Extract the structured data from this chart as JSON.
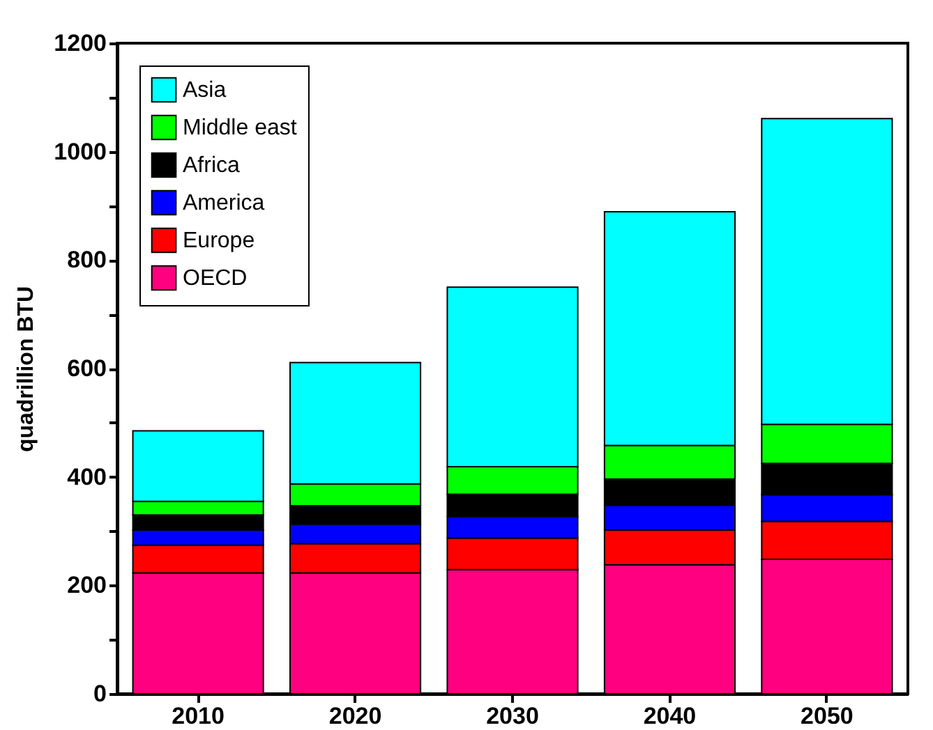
{
  "chart_data": {
    "type": "bar",
    "stacked": true,
    "ylabel": "quadrillion BTU",
    "categories": [
      "2010",
      "2020",
      "2030",
      "2040",
      "2050"
    ],
    "ylim": [
      0,
      1200
    ],
    "yticks": [
      0,
      {
        "value": 100,
        "label": null
      },
      200,
      {
        "value": 300,
        "label": null
      },
      400,
      {
        "value": 500,
        "label": null
      },
      600,
      {
        "value": 700,
        "label": null
      },
      800,
      {
        "value": 900,
        "label": null
      },
      1000,
      {
        "value": 1100,
        "label": null
      },
      1200
    ],
    "legend": "top left",
    "grid": false,
    "series": [
      {
        "name": "OECD",
        "color": "#ff0080",
        "values": [
          223,
          223,
          229,
          238,
          248
        ]
      },
      {
        "name": "Europe",
        "color": "#ff0000",
        "values": [
          51,
          54,
          58,
          64,
          70
        ]
      },
      {
        "name": "America",
        "color": "#0000ff",
        "values": [
          28,
          36,
          40,
          46,
          49
        ]
      },
      {
        "name": "Africa",
        "color": "#000000",
        "values": [
          28,
          34,
          41,
          48,
          58
        ]
      },
      {
        "name": "Middle east",
        "color": "#00ff00",
        "values": [
          25,
          40,
          51,
          62,
          72
        ]
      },
      {
        "name": "Asia",
        "color": "#00ffff",
        "values": [
          130,
          224,
          331,
          431,
          564
        ]
      }
    ]
  }
}
